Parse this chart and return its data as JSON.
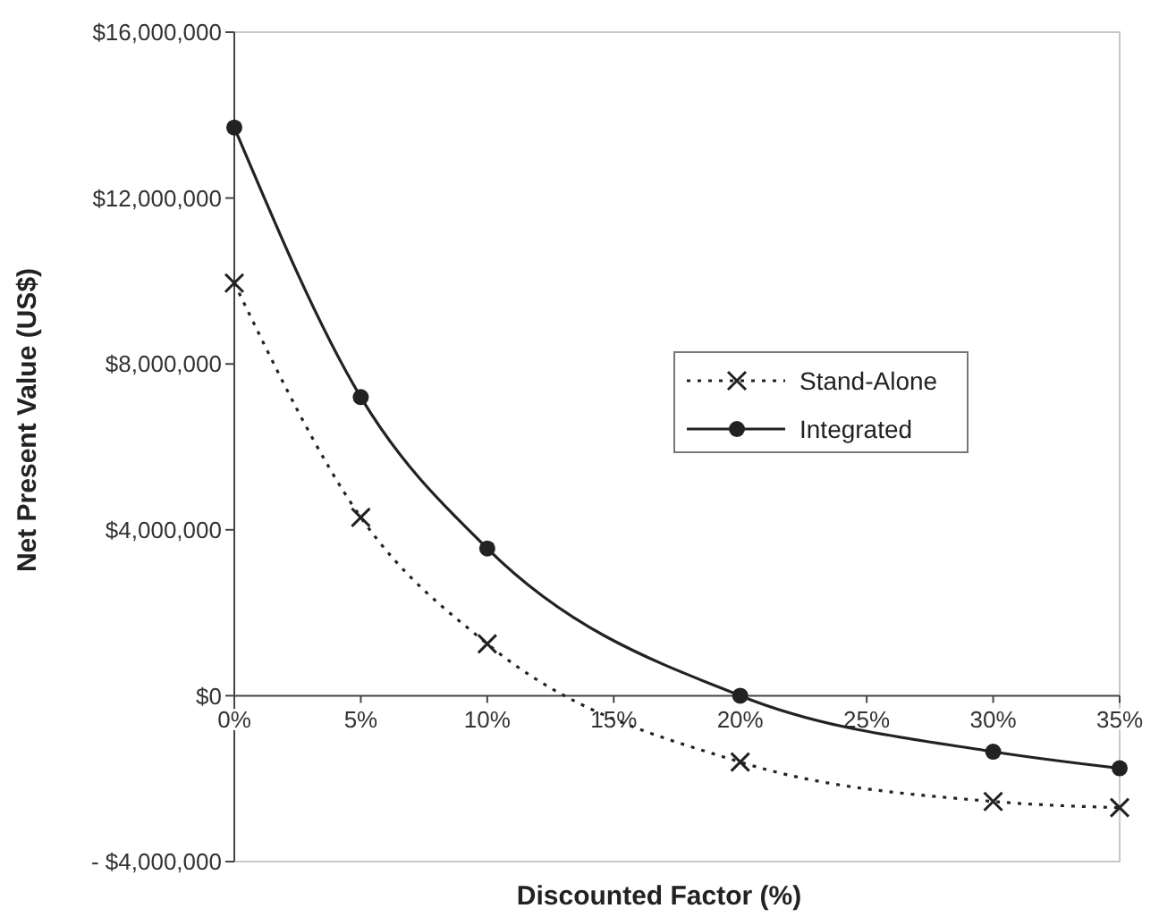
{
  "chart_data": {
    "type": "line",
    "xlabel": "Discounted Factor (%)",
    "ylabel": "Net Present Value (US$)",
    "x": [
      0,
      5,
      10,
      20,
      30,
      35
    ],
    "series": [
      {
        "name": "Stand-Alone",
        "color": "#222222",
        "values": [
          9950000,
          4300000,
          1250000,
          -1600000,
          -2550000,
          -2700000
        ],
        "marker": "cross",
        "line_style": "dotted"
      },
      {
        "name": "Integrated",
        "color": "#222222",
        "values": [
          13700000,
          7200000,
          3550000,
          0,
          -1350000,
          -1750000
        ],
        "marker": "circle",
        "line_style": "solid"
      }
    ],
    "xlim": [
      0,
      35
    ],
    "xticks": [
      {
        "value": 0,
        "label": "0%"
      },
      {
        "value": 5,
        "label": "5%"
      },
      {
        "value": 10,
        "label": "10%"
      },
      {
        "value": 15,
        "label": "15%"
      },
      {
        "value": 20,
        "label": "20%"
      },
      {
        "value": 25,
        "label": "25%"
      },
      {
        "value": 30,
        "label": "30%"
      },
      {
        "value": 35,
        "label": "35%"
      }
    ],
    "ylim": [
      -4000000,
      16000000
    ],
    "yticks": [
      {
        "value": -4000000,
        "label": "- $4,000,000"
      },
      {
        "value": 0,
        "label": "$0"
      },
      {
        "value": 4000000,
        "label": "$4,000,000"
      },
      {
        "value": 8000000,
        "label": "$8,000,000"
      },
      {
        "value": 12000000,
        "label": "$12,000,000"
      },
      {
        "value": 16000000,
        "label": "$16,000,000"
      }
    ],
    "grid": false,
    "legend": "right"
  }
}
